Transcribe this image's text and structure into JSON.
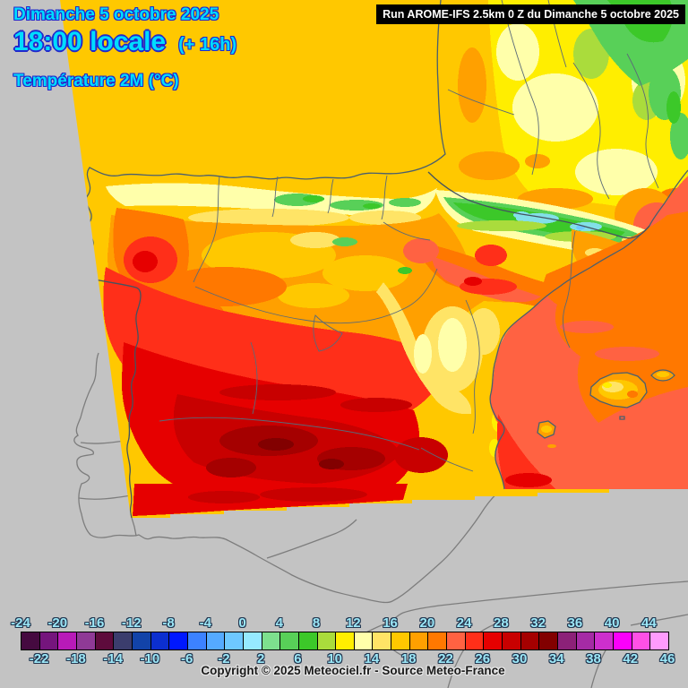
{
  "header": {
    "date": "Dimanche 5 octobre 2025",
    "time": "18:00 locale",
    "offset": "(+ 16h)",
    "parameter": "Température 2M (°C)",
    "run": "Run AROME-IFS 2.5km 0 Z du Dimanche 5 octobre 2025",
    "title_color": "#00dcff",
    "title_outline": "#2228cc"
  },
  "footer": {
    "copyright": "Copyright © 2025 Meteociel.fr - Source Meteo-France"
  },
  "legend": {
    "unit": "°C",
    "tick_labels": [
      "-24",
      "-22",
      "-20",
      "-18",
      "-16",
      "-14",
      "-12",
      "-10",
      "-8",
      "-6",
      "-4",
      "-2",
      "0",
      "2",
      "4",
      "6",
      "8",
      "10",
      "12",
      "14",
      "16",
      "18",
      "20",
      "22",
      "24",
      "26",
      "28",
      "30",
      "32",
      "34",
      "36",
      "38",
      "40",
      "42",
      "44",
      "46"
    ],
    "cell_colors": [
      "#450a40",
      "#75157d",
      "#b81ab8",
      "#8f3a96",
      "#5e0b3c",
      "#3b3d6d",
      "#1243a8",
      "#0c2fd0",
      "#0018ff",
      "#3c82ff",
      "#55aaff",
      "#6ec8ff",
      "#96eaff",
      "#7de08e",
      "#58d058",
      "#3cc829",
      "#aadc3c",
      "#ffee00",
      "#ffffaa",
      "#ffe466",
      "#ffc800",
      "#ffa000",
      "#ff7800",
      "#ff6242",
      "#ff2f19",
      "#e60000",
      "#c80000",
      "#a50000",
      "#820000",
      "#8c2178",
      "#a52ba5",
      "#cd2fcd",
      "#fb00fb",
      "#ff50e6",
      "#ff9bfd"
    ],
    "label_color": "#9ce8f8"
  },
  "map": {
    "background": "#c3c3c3",
    "outside_line_color": "#7d7d7d",
    "inside_line_color": "#4a5f6e",
    "border_line_color": "#44535f",
    "admin_line_color": "#5a6a78",
    "colors": {
      "gold": "#ffc800",
      "pale_yellow": "#ffffaa",
      "light_gold": "#ffe466",
      "yellow": "#ffee00",
      "yellow_green": "#aadc3c",
      "green": "#58d058",
      "bright_green": "#3cc829",
      "cyan": "#82e0e8",
      "sky": "#6ec8ff",
      "orange": "#ffa000",
      "dark_orange": "#ff7800",
      "salmon": "#ff6242",
      "red_orange": "#ff2f19",
      "red": "#e60000",
      "dark_red": "#c80000",
      "darker_red": "#a50000",
      "maroon": "#820000"
    }
  }
}
